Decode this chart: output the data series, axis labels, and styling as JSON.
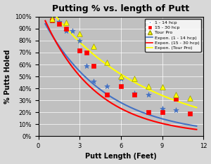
{
  "title": "Putting % vs. length of Putt",
  "xlabel": "Putt Length (Feet)",
  "ylabel": "% Putts Holed",
  "xlim": [
    0,
    12
  ],
  "ylim": [
    0,
    1.0
  ],
  "yticks": [
    0,
    0.1,
    0.2,
    0.3,
    0.4,
    0.5,
    0.6,
    0.7,
    0.8,
    0.9,
    1.0
  ],
  "xticks": [
    0,
    3,
    6,
    9,
    12
  ],
  "background_color": "#c0c0c0",
  "scatter_1_14": {
    "x": [
      1,
      1.5,
      2,
      2.5,
      3,
      3.5,
      4,
      5,
      6,
      7,
      8,
      9,
      10
    ],
    "y": [
      0.97,
      0.96,
      0.88,
      0.88,
      0.8,
      0.59,
      0.46,
      0.42,
      0.48,
      0.36,
      0.35,
      0.23,
      0.22
    ],
    "color": "#4472c4",
    "marker": "*",
    "size": 30
  },
  "scatter_15_30": {
    "x": [
      1,
      1.5,
      2,
      3,
      3.5,
      4,
      5,
      6,
      7,
      8,
      9,
      10,
      11
    ],
    "y": [
      0.97,
      0.94,
      0.9,
      0.72,
      0.7,
      0.59,
      0.35,
      0.42,
      0.35,
      0.2,
      0.2,
      0.31,
      0.19
    ],
    "color": "#ff0000",
    "marker": "s",
    "size": 20
  },
  "scatter_tourpro": {
    "x": [
      1,
      2,
      3,
      4,
      5,
      6,
      7,
      8,
      9,
      10,
      11
    ],
    "y": [
      0.98,
      0.95,
      0.86,
      0.75,
      0.62,
      0.5,
      0.48,
      0.42,
      0.41,
      0.35,
      0.32
    ],
    "color": "#ffff00",
    "edgecolor": "#999900",
    "marker": "^",
    "size": 30
  },
  "exp_1_14": {
    "a": 1.05,
    "b": -0.22,
    "color": "#4472c4"
  },
  "exp_15_30": {
    "a": 1.1,
    "b": -0.26,
    "color": "#ff0000"
  },
  "exp_tourpro": {
    "a": 1.2,
    "b": -0.14,
    "color": "#ffff00"
  },
  "legend_labels": [
    "1 - 14 hcp",
    "15 - 30 hcp",
    "Tour Pro",
    "Expon. (1 - 14 hcp)",
    "Expon. (15 - 30 hcp)",
    "Expon. (Tour Pro)"
  ]
}
